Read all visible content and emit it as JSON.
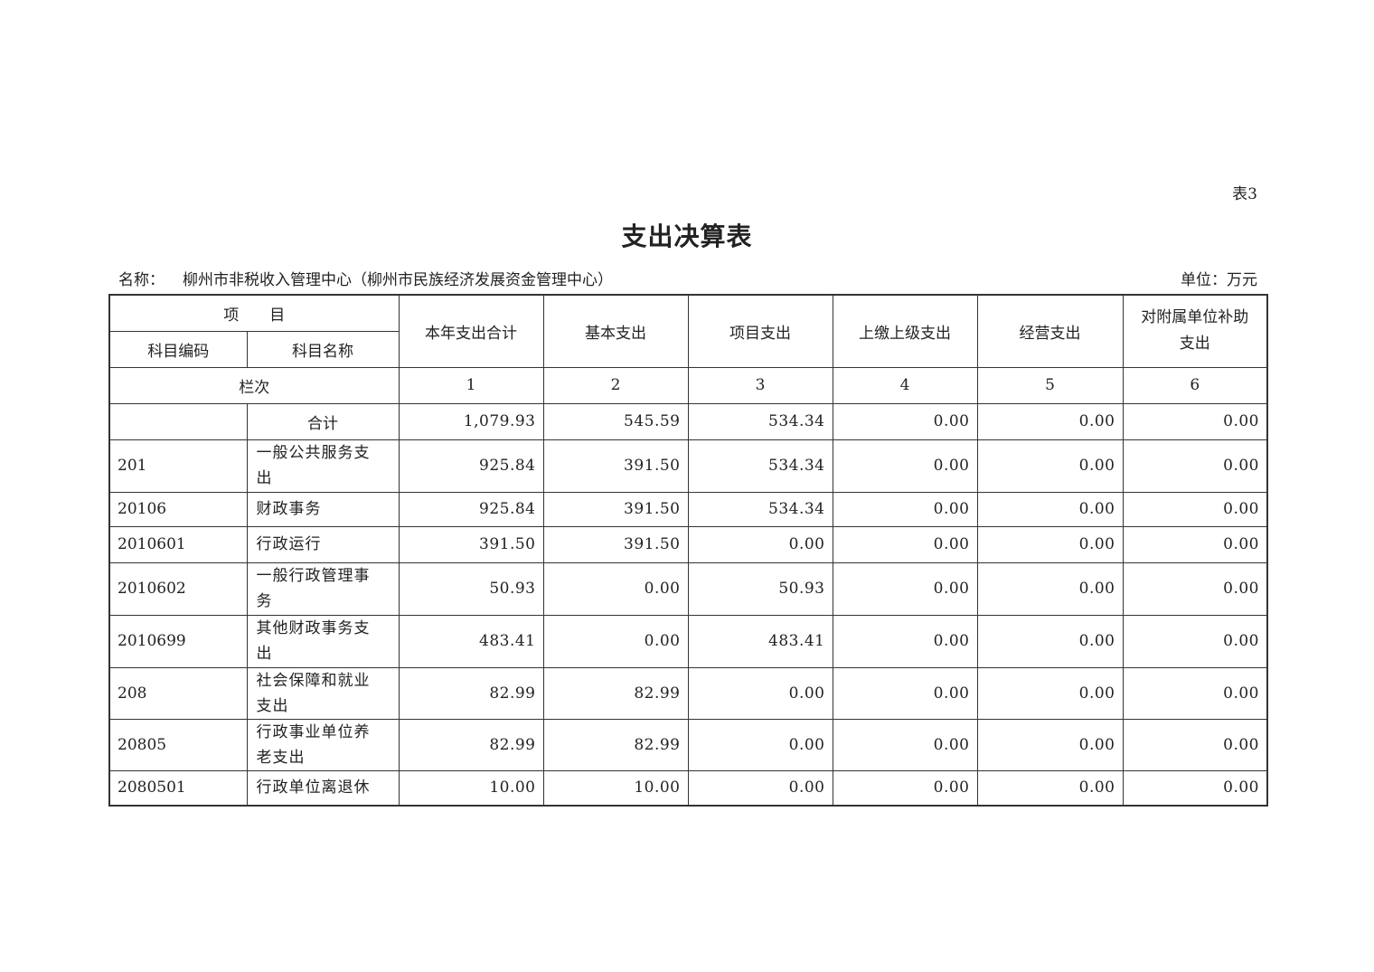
{
  "table_number": "表3",
  "title": "支出决算表",
  "name_label": "名称：",
  "name_value": "柳州市非税收入管理中心（柳州市民族经济发展资金管理中心）",
  "unit": "单位：万元",
  "headers": {
    "item": "项　　目",
    "code": "科目编码",
    "name": "科目名称",
    "columns": [
      "本年支出合计",
      "基本支出",
      "项目支出",
      "上缴上级支出",
      "经营支出",
      "对附属单位补助支出"
    ],
    "row_index_label": "栏次",
    "row_index": [
      "1",
      "2",
      "3",
      "4",
      "5",
      "6"
    ]
  },
  "rows": [
    {
      "code": "",
      "name": "合计",
      "values": [
        "1,079.93",
        "545.59",
        "534.34",
        "0.00",
        "0.00",
        "0.00"
      ]
    },
    {
      "code": "201",
      "name": "一般公共服务支出",
      "values": [
        "925.84",
        "391.50",
        "534.34",
        "0.00",
        "0.00",
        "0.00"
      ]
    },
    {
      "code": "20106",
      "name": "财政事务",
      "values": [
        "925.84",
        "391.50",
        "534.34",
        "0.00",
        "0.00",
        "0.00"
      ]
    },
    {
      "code": "2010601",
      "name": "行政运行",
      "values": [
        "391.50",
        "391.50",
        "0.00",
        "0.00",
        "0.00",
        "0.00"
      ]
    },
    {
      "code": "2010602",
      "name": "一般行政管理事务",
      "values": [
        "50.93",
        "0.00",
        "50.93",
        "0.00",
        "0.00",
        "0.00"
      ]
    },
    {
      "code": "2010699",
      "name": "其他财政事务支出",
      "values": [
        "483.41",
        "0.00",
        "483.41",
        "0.00",
        "0.00",
        "0.00"
      ]
    },
    {
      "code": "208",
      "name": "社会保障和就业支出",
      "values": [
        "82.99",
        "82.99",
        "0.00",
        "0.00",
        "0.00",
        "0.00"
      ]
    },
    {
      "code": "20805",
      "name": "行政事业单位养老支出",
      "values": [
        "82.99",
        "82.99",
        "0.00",
        "0.00",
        "0.00",
        "0.00"
      ]
    },
    {
      "code": "2080501",
      "name": "行政单位离退休",
      "values": [
        "10.00",
        "10.00",
        "0.00",
        "0.00",
        "0.00",
        "0.00"
      ]
    }
  ]
}
